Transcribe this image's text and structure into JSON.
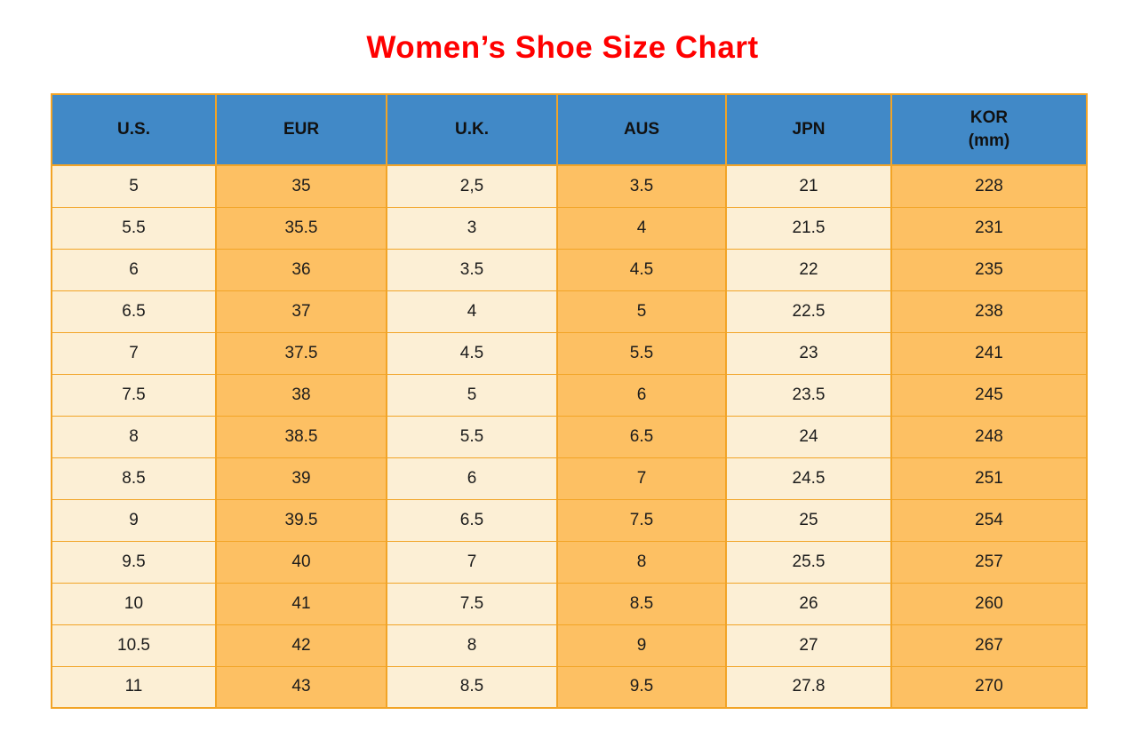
{
  "title": {
    "text": "Women’s Shoe Size Chart"
  },
  "colors": {
    "title": "#ff0000",
    "header_bg": "#4189c7",
    "cell_light": "#fcefd5",
    "cell_orange": "#fdc063",
    "border": "#f2a426",
    "text": "#1c1c1c"
  },
  "table": {
    "headers": [
      {
        "line1": "U.S.",
        "line2": ""
      },
      {
        "line1": "EUR",
        "line2": ""
      },
      {
        "line1": "U.K.",
        "line2": ""
      },
      {
        "line1": "AUS",
        "line2": ""
      },
      {
        "line1": "JPN",
        "line2": ""
      },
      {
        "line1": "KOR",
        "line2": "(mm)"
      }
    ]
  },
  "chart_data": {
    "type": "table",
    "title": "Women’s Shoe Size Chart",
    "columns": [
      "U.S.",
      "EUR",
      "U.K.",
      "AUS",
      "JPN",
      "KOR (mm)"
    ],
    "rows": [
      [
        "5",
        "35",
        "2,5",
        "3.5",
        "21",
        "228"
      ],
      [
        "5.5",
        "35.5",
        "3",
        "4",
        "21.5",
        "231"
      ],
      [
        "6",
        "36",
        "3.5",
        "4.5",
        "22",
        "235"
      ],
      [
        "6.5",
        "37",
        "4",
        "5",
        "22.5",
        "238"
      ],
      [
        "7",
        "37.5",
        "4.5",
        "5.5",
        "23",
        "241"
      ],
      [
        "7.5",
        "38",
        "5",
        "6",
        "23.5",
        "245"
      ],
      [
        "8",
        "38.5",
        "5.5",
        "6.5",
        "24",
        "248"
      ],
      [
        "8.5",
        "39",
        "6",
        "7",
        "24.5",
        "251"
      ],
      [
        "9",
        "39.5",
        "6.5",
        "7.5",
        "25",
        "254"
      ],
      [
        "9.5",
        "40",
        "7",
        "8",
        "25.5",
        "257"
      ],
      [
        "10",
        "41",
        "7.5",
        "8.5",
        "26",
        "260"
      ],
      [
        "10.5",
        "42",
        "8",
        "9",
        "27",
        "267"
      ],
      [
        "11",
        "43",
        "8.5",
        "9.5",
        "27.8",
        "270"
      ]
    ]
  }
}
